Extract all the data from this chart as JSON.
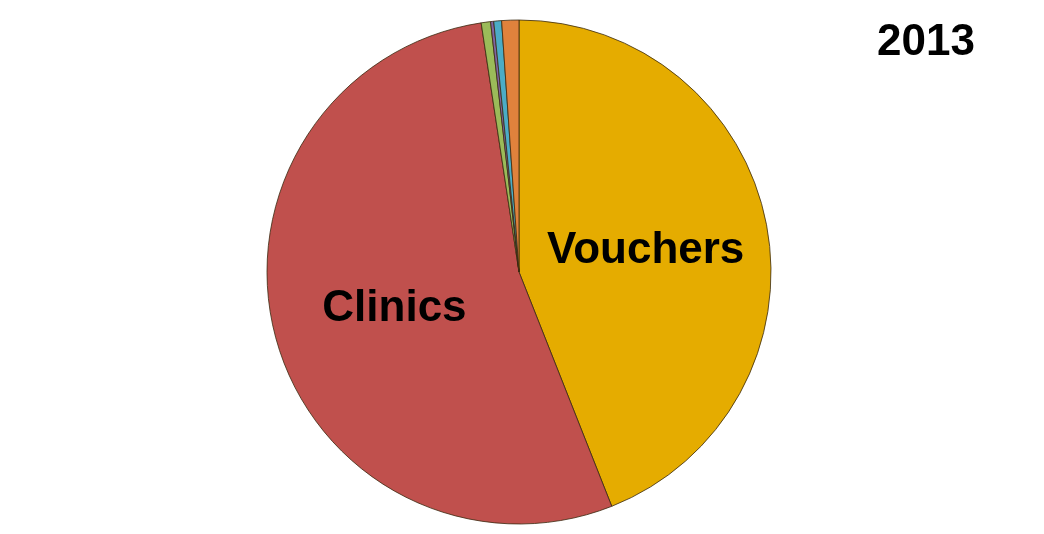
{
  "chart_data": {
    "type": "pie",
    "title": "2013",
    "categories": [
      "Vouchers",
      "Clinics",
      null,
      null,
      null,
      null
    ],
    "values": [
      44,
      53.6,
      0.6,
      0.2,
      0.5,
      1.1
    ],
    "colors": [
      "#e5ac00",
      "#c0504d",
      "#9bbb59",
      "#8064a2",
      "#4bacc6",
      "#e0823c"
    ]
  }
}
